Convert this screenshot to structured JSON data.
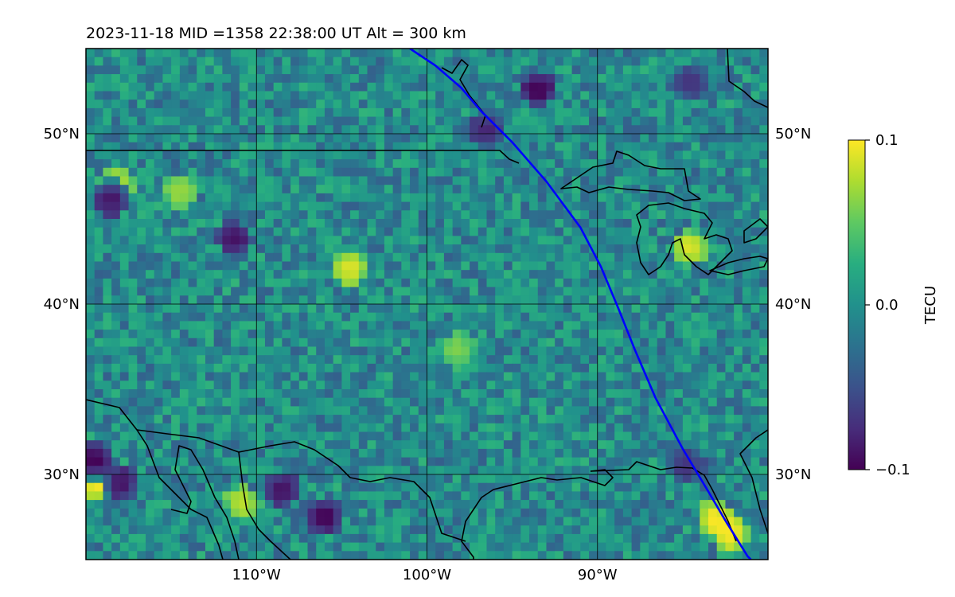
{
  "chart_data": {
    "type": "heatmap",
    "title": "2023-11-18  MID =1358    22:38:00  UT  Alt = 300 km",
    "map": {
      "lon_range": [
        -120,
        -80
      ],
      "lat_range": [
        25,
        55
      ],
      "gridlines": true,
      "coastlines": true
    },
    "x_ticks": [
      -110,
      -100,
      -90
    ],
    "x_tick_labels": [
      "110°W",
      "100°W",
      "90°W"
    ],
    "y_ticks": [
      30,
      40,
      50
    ],
    "y_tick_labels": [
      "30°N",
      "40°N",
      "50°N"
    ],
    "colorbar": {
      "label": "TECU",
      "colormap": "viridis",
      "range": [
        -0.1,
        0.1
      ],
      "tick_values": [
        0.1,
        0.0,
        -0.1
      ],
      "tick_labels": [
        "0.1",
        "0.0",
        "−0.1"
      ]
    },
    "series": [
      {
        "type": "line",
        "color": "#0000ff",
        "lon": [
          -101.0,
          -99.5,
          -98.0,
          -96.8,
          -95.0,
          -93.0,
          -91.0,
          -89.8,
          -88.8,
          -87.8,
          -86.6,
          -85.0,
          -83.5,
          -82.5,
          -81.2,
          -81.0
        ],
        "lat": [
          55.0,
          54.0,
          52.7,
          51.3,
          49.5,
          47.2,
          44.5,
          42.2,
          39.8,
          37.3,
          34.5,
          31.5,
          29.0,
          27.3,
          25.2,
          25.0
        ]
      }
    ],
    "anomalies_high": [
      {
        "lon": -119.3,
        "lat": 29.5,
        "value": 0.1
      },
      {
        "lon": -118.3,
        "lat": 47.0,
        "value": 0.08
      },
      {
        "lon": -114.5,
        "lat": 46.6,
        "value": 0.07
      },
      {
        "lon": -104.5,
        "lat": 42.1,
        "value": 0.09
      },
      {
        "lon": -98.2,
        "lat": 37.3,
        "value": 0.06
      },
      {
        "lon": -84.6,
        "lat": 43.3,
        "value": 0.09
      },
      {
        "lon": -83.1,
        "lat": 27.4,
        "value": 0.1
      },
      {
        "lon": -82.2,
        "lat": 26.5,
        "value": 0.1
      },
      {
        "lon": -110.8,
        "lat": 28.3,
        "value": 0.08
      }
    ],
    "anomalies_low": [
      {
        "lon": -93.5,
        "lat": 52.6,
        "value": -0.1
      },
      {
        "lon": -84.5,
        "lat": 53.0,
        "value": -0.07
      },
      {
        "lon": -119.5,
        "lat": 30.8,
        "value": -0.1
      },
      {
        "lon": -118.0,
        "lat": 29.5,
        "value": -0.09
      },
      {
        "lon": -106.0,
        "lat": 27.5,
        "value": -0.1
      },
      {
        "lon": -108.5,
        "lat": 29.1,
        "value": -0.09
      },
      {
        "lon": -111.3,
        "lat": 43.8,
        "value": -0.09
      },
      {
        "lon": -118.5,
        "lat": 46.2,
        "value": -0.09
      },
      {
        "lon": -96.5,
        "lat": 50.2,
        "value": -0.08
      },
      {
        "lon": -84.8,
        "lat": 30.5,
        "value": -0.07
      }
    ],
    "background_value": -0.005
  }
}
